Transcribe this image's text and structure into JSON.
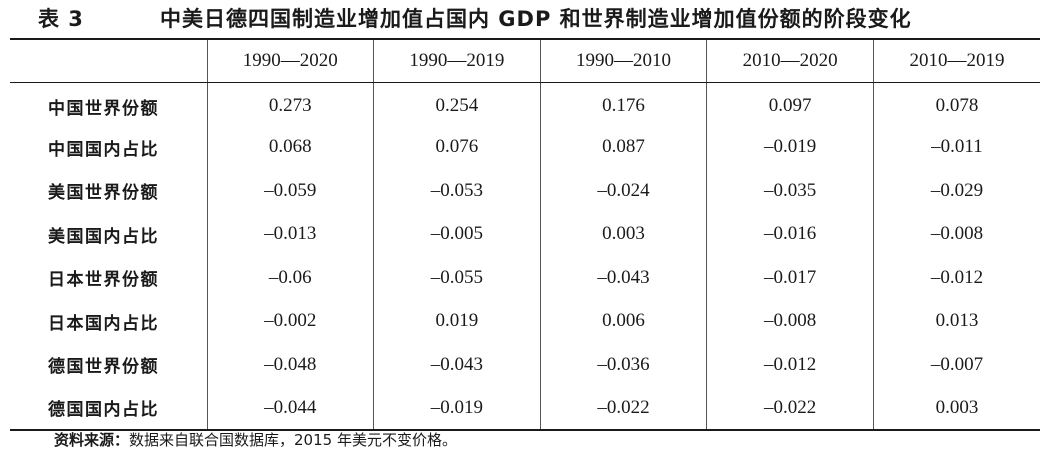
{
  "table": {
    "number": "表 3",
    "caption": "中美日德四国制造业增加值占国内 GDP 和世界制造业增加值份额的阶段变化",
    "columns": [
      "",
      "1990—2020",
      "1990—2019",
      "1990—2010",
      "2010—2020",
      "2010—2019"
    ],
    "rows": [
      {
        "label": "中国世界份额",
        "values": [
          "0.273",
          "0.254",
          "0.176",
          "0.097",
          "0.078"
        ]
      },
      {
        "label": "中国国内占比",
        "values": [
          "0.068",
          "0.076",
          "0.087",
          "–0.019",
          "–0.011"
        ]
      },
      {
        "label": "美国世界份额",
        "values": [
          "–0.059",
          "–0.053",
          "–0.024",
          "–0.035",
          "–0.029"
        ]
      },
      {
        "label": "美国国内占比",
        "values": [
          "–0.013",
          "–0.005",
          "0.003",
          "–0.016",
          "–0.008"
        ]
      },
      {
        "label": "日本世界份额",
        "values": [
          "–0.06",
          "–0.055",
          "–0.043",
          "–0.017",
          "–0.012"
        ]
      },
      {
        "label": "日本国内占比",
        "values": [
          "–0.002",
          "0.019",
          "0.006",
          "–0.008",
          "0.013"
        ]
      },
      {
        "label": "德国世界份额",
        "values": [
          "–0.048",
          "–0.043",
          "–0.036",
          "–0.012",
          "–0.007"
        ]
      },
      {
        "label": "德国国内占比",
        "values": [
          "–0.044",
          "–0.019",
          "–0.022",
          "–0.022",
          "0.003"
        ]
      }
    ]
  },
  "source": {
    "label": "资料来源：",
    "text": "数据来自联合国数据库，2015 年美元不变价格。"
  }
}
